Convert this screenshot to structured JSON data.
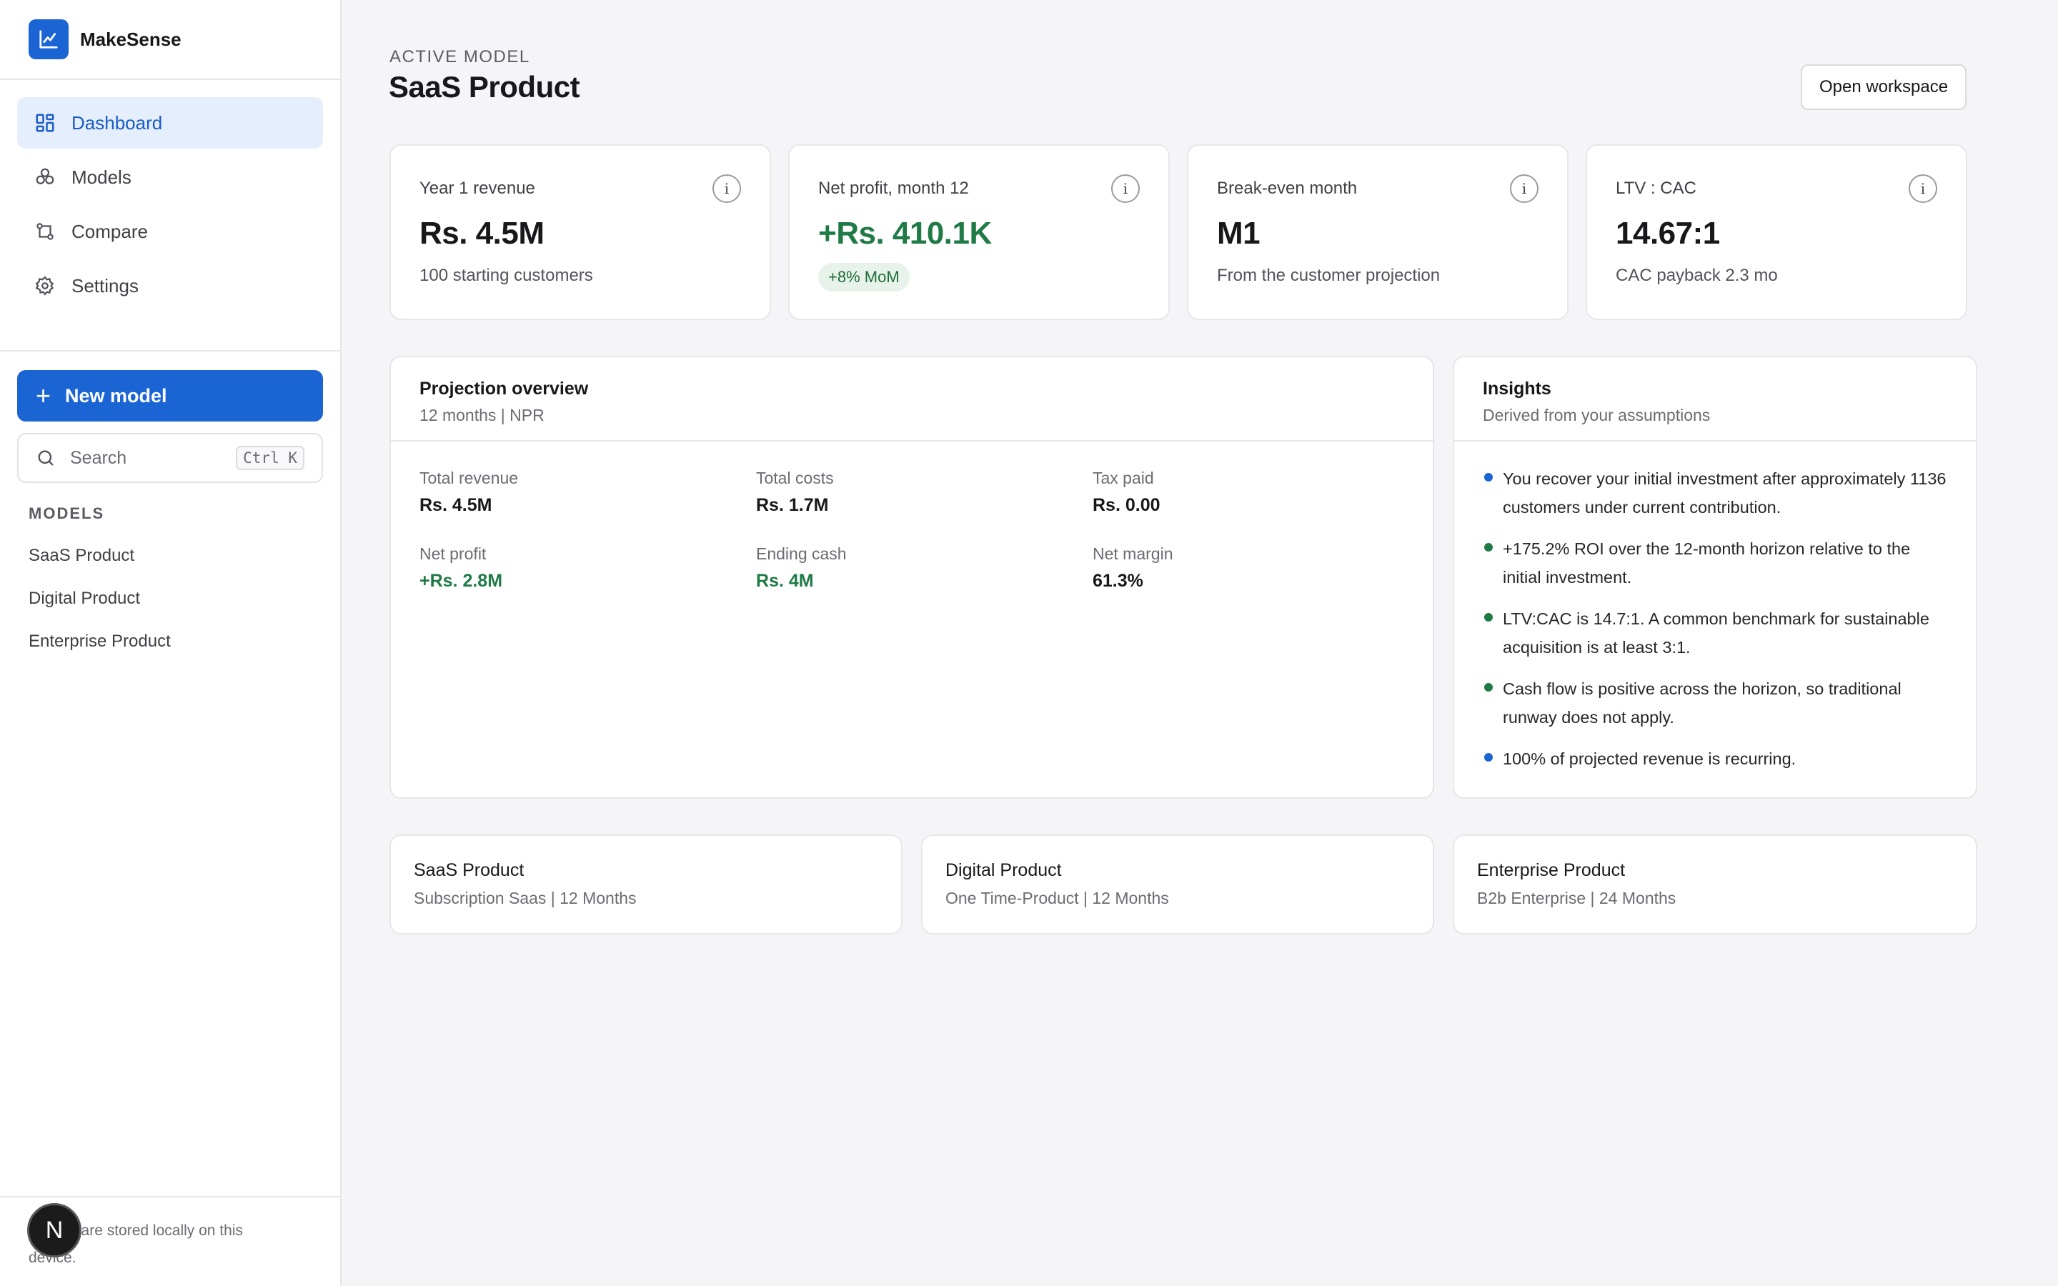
{
  "sidebar": {
    "brand": "MakeSense",
    "nav": [
      {
        "label": "Dashboard",
        "icon": "dashboard-icon",
        "active": true
      },
      {
        "label": "Models",
        "icon": "models-icon"
      },
      {
        "label": "Compare",
        "icon": "compare-icon"
      },
      {
        "label": "Settings",
        "icon": "settings-icon"
      }
    ],
    "new_model_label": "New model",
    "search_placeholder": "Search",
    "search_shortcut": "Ctrl K",
    "models_heading": "MODELS",
    "models": [
      "SaaS Product",
      "Digital Product",
      "Enterprise Product"
    ],
    "footer_text": "Models are stored locally on this device.",
    "badge_letter": "N"
  },
  "header": {
    "eyebrow": "ACTIVE MODEL",
    "title": "SaaS Product",
    "open_workspace": "Open workspace"
  },
  "kpis": [
    {
      "label": "Year 1 revenue",
      "value": "Rs. 4.5M",
      "sub": "100 starting customers",
      "info": "i"
    },
    {
      "label": "Net profit, month 12",
      "value": "+Rs. 410.1K",
      "pill": "+8% MoM",
      "info": "i"
    },
    {
      "label": "Break-even month",
      "value": "M1",
      "sub": "From the customer projection",
      "info": "i"
    },
    {
      "label": "LTV : CAC",
      "value": "14.67:1",
      "sub": "CAC payback 2.3 mo",
      "info": "i"
    }
  ],
  "projection": {
    "title": "Projection overview",
    "subtitle": "12 months | NPR",
    "stats": [
      {
        "label": "Total revenue",
        "value": "Rs. 4.5M"
      },
      {
        "label": "Total costs",
        "value": "Rs. 1.7M"
      },
      {
        "label": "Tax paid",
        "value": "Rs. 0.00"
      },
      {
        "label": "Net profit",
        "value": "+Rs. 2.8M"
      },
      {
        "label": "Ending cash",
        "value": "Rs. 4M"
      },
      {
        "label": "Net margin",
        "value": "61.3%"
      }
    ]
  },
  "insights": {
    "title": "Insights",
    "subtitle": "Derived from your assumptions",
    "items": [
      {
        "text": "You recover your initial investment after approximately 1136 customers under current contribution.",
        "color": "#1a64d4"
      },
      {
        "text": "+175.2% ROI over the 12-month horizon relative to the initial investment.",
        "color": "#1f7a45"
      },
      {
        "text": "LTV:CAC is 14.7:1. A common benchmark for sustainable acquisition is at least 3:1.",
        "color": "#1f7a45"
      },
      {
        "text": "Cash flow is positive across the horizon, so traditional runway does not apply.",
        "color": "#1f7a45"
      },
      {
        "text": "100% of projected revenue is recurring.",
        "color": "#1a64d4"
      }
    ]
  },
  "model_cards": [
    {
      "title": "SaaS Product",
      "sub": "Subscription Saas | 12 Months"
    },
    {
      "title": "Digital Product",
      "sub": "One Time-Product | 12 Months"
    },
    {
      "title": "Enterprise Product",
      "sub": "B2b Enterprise | 24 Months"
    }
  ],
  "colors": {
    "accent": "#1a64d4",
    "positive": "#1f7a45"
  }
}
